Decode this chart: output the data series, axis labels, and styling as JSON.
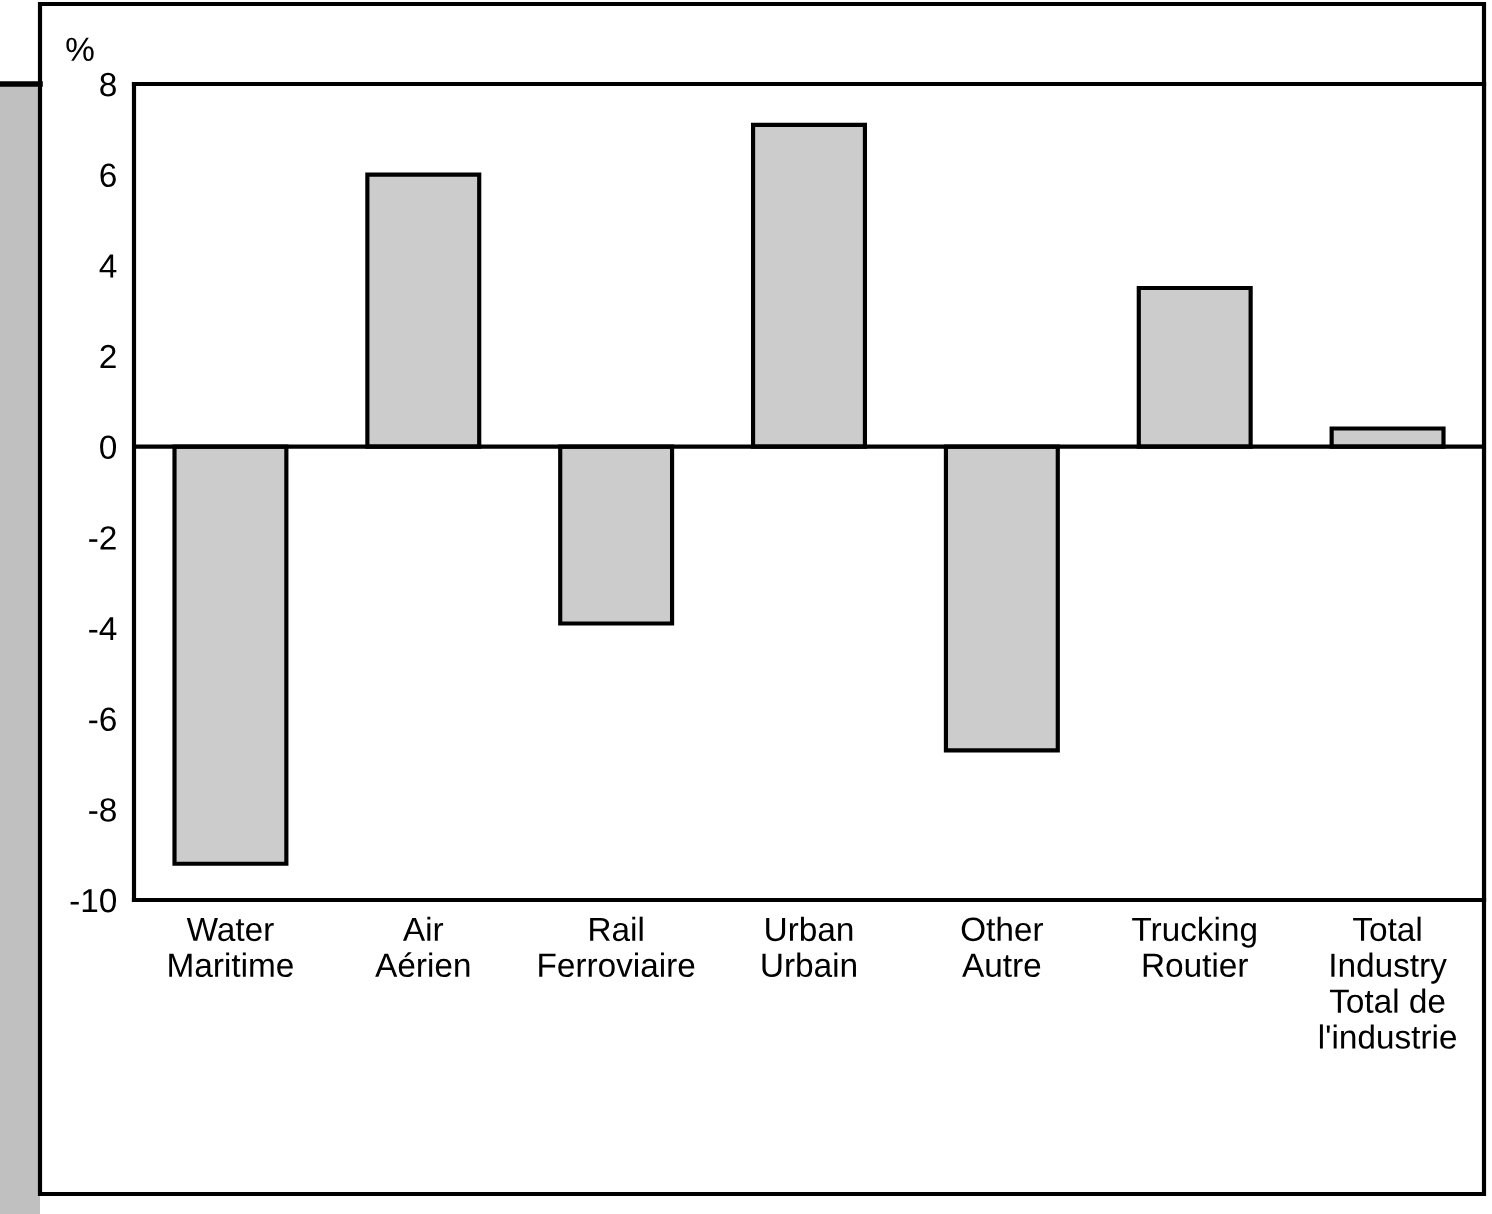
{
  "chart_data": {
    "type": "bar",
    "ylabel": "%",
    "categories": [
      "Water\nMaritime",
      "Air\nAérien",
      "Rail\nFerroviaire",
      "Urban\nUrbain",
      "Other\nAutre",
      "Trucking\nRoutier",
      "Total\nIndustry\nTotal de\nl'industrie"
    ],
    "values": [
      -9.2,
      6.0,
      -3.9,
      7.1,
      -6.7,
      3.5,
      0.4
    ],
    "color": "#cccccc",
    "ylim": [
      -10,
      8
    ],
    "yticks": [
      -10,
      -8,
      -6,
      -4,
      -2,
      0,
      2,
      4,
      6,
      8
    ],
    "ref_lines": [
      {
        "axis": "y",
        "value": 0,
        "color": "#000000"
      }
    ]
  }
}
